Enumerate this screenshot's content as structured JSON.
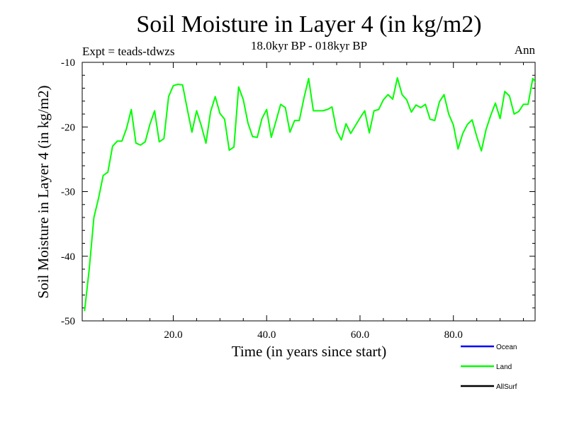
{
  "chart_data": {
    "type": "line",
    "title": "Soil Moisture in Layer 4 (in kg/m2)",
    "subtitle": "18.0kyr BP - 018kyr BP",
    "left_note": "Expt = teads-tdwzs",
    "right_note": "Ann",
    "xlabel": "Time (in years since start)",
    "ylabel": "Soil Moisture in Layer 4 (in kg/m2)",
    "xlim": [
      0.5,
      97.5
    ],
    "ylim": [
      -50,
      -10
    ],
    "xticks": [
      20,
      40,
      60,
      80
    ],
    "xtick_labels": [
      "20.0",
      "40.0",
      "60.0",
      "80.0"
    ],
    "yticks": [
      -10,
      -20,
      -30,
      -40,
      -50
    ],
    "ytick_labels": [
      "-10",
      "-20",
      "-30",
      "-40",
      "-50"
    ],
    "legend": [
      {
        "name": "Ocean",
        "color": "#0000ff"
      },
      {
        "name": "Land",
        "color": "#00ff00"
      },
      {
        "name": "AllSurf",
        "color": "#000000"
      }
    ],
    "series": [
      {
        "name": "Land",
        "color": "#00ff00",
        "x": [
          1,
          2,
          3,
          4,
          5,
          6,
          7,
          8,
          9,
          10,
          11,
          12,
          13,
          14,
          15,
          16,
          17,
          18,
          19,
          20,
          21,
          22,
          23,
          24,
          25,
          26,
          27,
          28,
          29,
          30,
          31,
          32,
          33,
          34,
          35,
          36,
          37,
          38,
          39,
          40,
          41,
          42,
          43,
          44,
          45,
          46,
          47,
          48,
          49,
          50,
          51,
          52,
          53,
          54,
          55,
          56,
          57,
          58,
          59,
          60,
          61,
          62,
          63,
          64,
          65,
          66,
          67,
          68,
          69,
          70,
          71,
          72,
          73,
          74,
          75,
          76,
          77,
          78,
          79,
          80,
          81,
          82,
          83,
          84,
          85,
          86,
          87,
          88,
          89,
          90,
          91,
          92,
          93,
          94,
          95,
          96,
          97,
          98
        ],
        "values": [
          -48.5,
          -42.0,
          -34.0,
          -31.0,
          -27.5,
          -27.0,
          -23.0,
          -22.2,
          -22.2,
          -20.2,
          -17.3,
          -22.5,
          -22.8,
          -22.3,
          -19.6,
          -17.5,
          -22.3,
          -21.8,
          -15.3,
          -13.6,
          -13.4,
          -13.5,
          -17.2,
          -20.8,
          -17.5,
          -19.8,
          -22.5,
          -17.6,
          -15.3,
          -17.9,
          -18.8,
          -23.6,
          -23.1,
          -13.8,
          -15.8,
          -19.4,
          -21.5,
          -21.6,
          -18.7,
          -17.3,
          -21.6,
          -19.1,
          -16.5,
          -17.0,
          -20.8,
          -19.0,
          -19.0,
          -15.5,
          -12.5,
          -17.5,
          -17.5,
          -17.5,
          -17.3,
          -16.9,
          -20.6,
          -22.0,
          -19.5,
          -21.0,
          -19.8,
          -18.6,
          -17.5,
          -20.9,
          -17.5,
          -17.3,
          -15.8,
          -15.0,
          -15.7,
          -12.4,
          -15.0,
          -15.8,
          -17.7,
          -16.6,
          -17.0,
          -16.5,
          -18.8,
          -19.0,
          -16.1,
          -15.0,
          -18.0,
          -19.7,
          -23.4,
          -21.0,
          -19.6,
          -18.9,
          -21.5,
          -23.7,
          -20.4,
          -18.2,
          -16.3,
          -18.7,
          -14.5,
          -15.2,
          -18.0,
          -17.6,
          -16.5,
          -16.5,
          -12.5,
          -13.5
        ]
      }
    ]
  }
}
